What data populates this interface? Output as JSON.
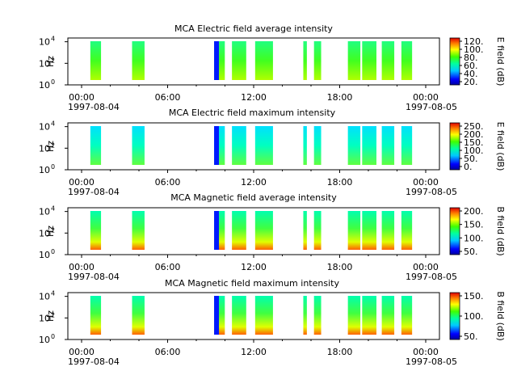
{
  "chart_data": [
    {
      "type": "heatmap",
      "title": "MCA  Electric field average intensity",
      "ylabel": "Hz",
      "colorbar_label": "E field (dB)",
      "colorbar_ticks": [
        "20.",
        "40.",
        "60.",
        "80.",
        "100.",
        "120."
      ],
      "y_ticks": [
        {
          "base": "10",
          "exp": "0"
        },
        {
          "base": "10",
          "exp": "2"
        },
        {
          "base": "10",
          "exp": "4"
        }
      ],
      "x_ticks": [
        "00:00",
        "06:00",
        "12:00",
        "18:00",
        "00:00"
      ],
      "x_dates": [
        "1997-08-04",
        "1997-08-05"
      ]
    },
    {
      "type": "heatmap",
      "title": "MCA  Electric field maximum intensity",
      "ylabel": "Hz",
      "colorbar_label": "E field (dB)",
      "colorbar_ticks": [
        "0.",
        "50.",
        "100.",
        "150.",
        "200.",
        "250."
      ],
      "y_ticks": [
        {
          "base": "10",
          "exp": "0"
        },
        {
          "base": "10",
          "exp": "2"
        },
        {
          "base": "10",
          "exp": "4"
        }
      ],
      "x_ticks": [
        "00:00",
        "06:00",
        "12:00",
        "18:00",
        "00:00"
      ],
      "x_dates": [
        "1997-08-04",
        "1997-08-05"
      ]
    },
    {
      "type": "heatmap",
      "title": "MCA  Magnetic field average intensity",
      "ylabel": "Hz",
      "colorbar_label": "B field (dB)",
      "colorbar_ticks": [
        "50.",
        "100.",
        "150.",
        "200."
      ],
      "y_ticks": [
        {
          "base": "10",
          "exp": "0"
        },
        {
          "base": "10",
          "exp": "2"
        },
        {
          "base": "10",
          "exp": "4"
        }
      ],
      "x_ticks": [
        "00:00",
        "06:00",
        "12:00",
        "18:00",
        "00:00"
      ],
      "x_dates": [
        "1997-08-04",
        "1997-08-05"
      ]
    },
    {
      "type": "heatmap",
      "title": "MCA  Magnetic field maximum intensity",
      "ylabel": "Hz",
      "colorbar_label": "B field (dB)",
      "colorbar_ticks": [
        "50.",
        "100.",
        "150."
      ],
      "y_ticks": [
        {
          "base": "10",
          "exp": "0"
        },
        {
          "base": "10",
          "exp": "2"
        },
        {
          "base": "10",
          "exp": "4"
        }
      ],
      "x_ticks": [
        "00:00",
        "06:00",
        "12:00",
        "18:00",
        "00:00"
      ],
      "x_dates": [
        "1997-08-04",
        "1997-08-05"
      ]
    }
  ]
}
